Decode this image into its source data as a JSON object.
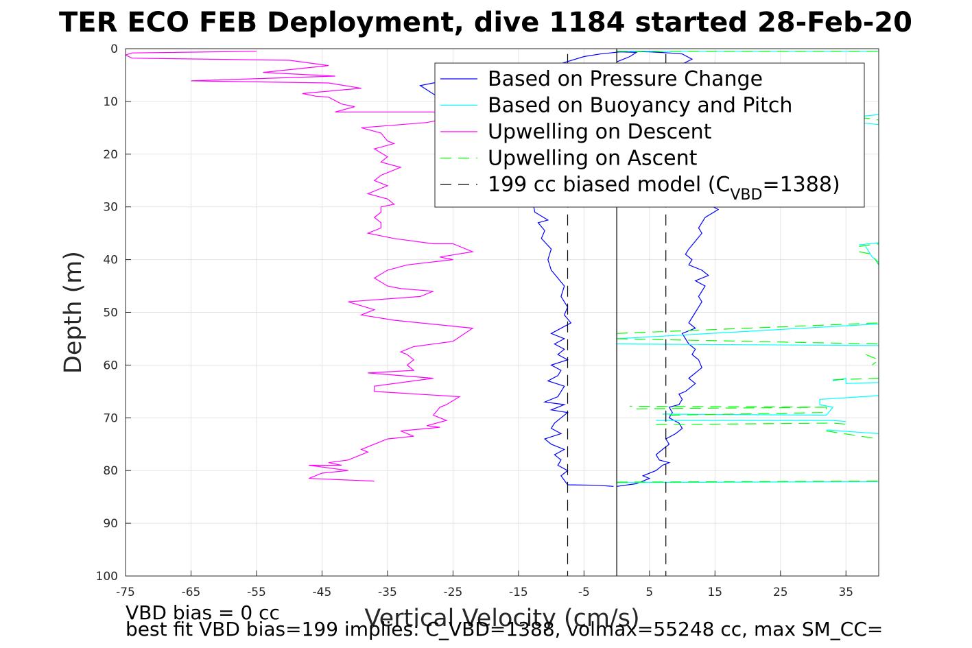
{
  "chart_data": {
    "type": "line",
    "title": "TER ECO FEB Deployment, dive 1184 started 28-Feb-20",
    "xlabel": "Vertical Velocity (cm/s)",
    "ylabel": "Depth (m)",
    "xlim": [
      -75,
      40
    ],
    "ylim": [
      0,
      100
    ],
    "y_reversed": true,
    "grid": true,
    "xticks": [
      -75,
      -65,
      -55,
      -45,
      -35,
      -25,
      -15,
      -5,
      5,
      15,
      25,
      35
    ],
    "yticks": [
      0,
      10,
      20,
      30,
      40,
      50,
      60,
      70,
      80,
      90,
      100
    ],
    "legend_position": "top-right",
    "legend": [
      {
        "label": "Based on Pressure Change",
        "color": "#0000ff",
        "style": "solid"
      },
      {
        "label": "Based on Buoyancy and Pitch",
        "color": "#00ffff",
        "style": "solid"
      },
      {
        "label": "Upwelling on Descent",
        "color": "#ff00ff",
        "style": "solid"
      },
      {
        "label": "Upwelling on Ascent",
        "color": "#00ff00",
        "style": "dashed"
      },
      {
        "label": "199 cc biased model (C",
        "sub": "VBD",
        "label_end": "=1388)",
        "color": "#000000",
        "style": "dashed"
      }
    ],
    "series": [
      {
        "name": "Based on Pressure Change",
        "color": "#0000ff",
        "style": "solid",
        "points": [
          [
            -0.5,
            83
          ],
          [
            -3,
            82.8
          ],
          [
            -7.5,
            82.7
          ],
          [
            -8.5,
            81
          ],
          [
            -7.5,
            80
          ],
          [
            -9,
            79
          ],
          [
            -8.5,
            78
          ],
          [
            -9.5,
            77
          ],
          [
            -8,
            76
          ],
          [
            -10,
            75
          ],
          [
            -11,
            74
          ],
          [
            -8.5,
            73
          ],
          [
            -10,
            72
          ],
          [
            -9.5,
            71
          ],
          [
            -8.5,
            70
          ],
          [
            -7.5,
            69
          ],
          [
            -10,
            68.5
          ],
          [
            -8,
            67.5
          ],
          [
            -11,
            67
          ],
          [
            -9,
            66
          ],
          [
            -8,
            64
          ],
          [
            -10.5,
            63
          ],
          [
            -9,
            62
          ],
          [
            -8.5,
            61
          ],
          [
            -10,
            60
          ],
          [
            -7.5,
            59
          ],
          [
            -9,
            58
          ],
          [
            -8,
            57
          ],
          [
            -9.5,
            56
          ],
          [
            -8,
            55
          ],
          [
            -10,
            54
          ],
          [
            -7,
            52
          ],
          [
            -8,
            50.5
          ],
          [
            -7.5,
            49
          ],
          [
            -8.5,
            47
          ],
          [
            -8,
            45
          ],
          [
            -9,
            43.5
          ],
          [
            -10,
            42
          ],
          [
            -10.5,
            40
          ],
          [
            -10,
            38
          ],
          [
            -11.5,
            36
          ],
          [
            -11,
            34.5
          ],
          [
            -12,
            33
          ],
          [
            -10.5,
            32.5
          ],
          [
            -12.5,
            31
          ],
          [
            -13,
            28
          ],
          [
            -11.5,
            25
          ],
          [
            -14,
            22
          ],
          [
            -15,
            18
          ],
          [
            -18,
            15
          ],
          [
            -25,
            11
          ],
          [
            -30,
            7
          ],
          [
            -28,
            6.5
          ],
          [
            -24,
            6
          ],
          [
            -18,
            5.5
          ],
          [
            -14,
            4
          ],
          [
            -9,
            3
          ],
          [
            -5,
            1.5
          ],
          [
            -2.5,
            1
          ],
          [
            -1,
            0.8
          ],
          [
            0.5,
            0.6
          ],
          [
            3,
            0.7
          ],
          [
            2,
            1.5
          ],
          [
            1,
            2
          ],
          [
            0,
            2.5
          ]
        ]
      },
      {
        "name": "Based on Pressure Change (ascent)",
        "color": "#0000ff",
        "style": "solid",
        "points": [
          [
            0,
            83
          ],
          [
            3,
            82.5
          ],
          [
            5,
            81.5
          ],
          [
            4,
            81
          ],
          [
            6,
            80
          ],
          [
            7,
            79
          ],
          [
            8,
            78.5
          ],
          [
            6.5,
            78
          ],
          [
            6,
            77
          ],
          [
            7,
            76
          ],
          [
            8,
            75
          ],
          [
            7.5,
            74
          ],
          [
            9,
            73
          ],
          [
            10,
            72
          ],
          [
            9.5,
            71
          ],
          [
            8,
            70
          ],
          [
            8.5,
            69
          ],
          [
            8,
            68
          ],
          [
            9.5,
            67.5
          ],
          [
            10,
            66.5
          ],
          [
            9.5,
            65.5
          ],
          [
            10.5,
            65
          ],
          [
            12,
            63.5
          ],
          [
            11,
            62.5
          ],
          [
            12,
            61.5
          ],
          [
            13,
            60.5
          ],
          [
            12.5,
            59
          ],
          [
            11.5,
            58
          ],
          [
            12,
            57
          ],
          [
            11,
            56
          ],
          [
            10.5,
            55
          ],
          [
            10,
            54
          ],
          [
            12,
            53
          ],
          [
            11,
            52
          ],
          [
            12,
            50
          ],
          [
            13,
            48
          ],
          [
            12.5,
            47
          ],
          [
            13.5,
            45
          ],
          [
            12,
            44
          ],
          [
            14,
            43
          ],
          [
            13,
            42
          ],
          [
            11,
            41
          ],
          [
            11.5,
            40
          ],
          [
            10.5,
            39
          ],
          [
            11,
            38
          ],
          [
            12,
            36.5
          ],
          [
            13,
            35
          ],
          [
            12.5,
            34
          ],
          [
            13.5,
            32
          ],
          [
            15.5,
            30.5
          ],
          [
            14,
            29.5
          ],
          [
            13,
            28
          ],
          [
            12,
            25
          ],
          [
            10,
            22
          ],
          [
            11,
            18
          ],
          [
            9,
            16
          ],
          [
            8,
            14
          ],
          [
            9,
            12
          ],
          [
            10,
            8
          ],
          [
            10.5,
            5
          ],
          [
            9,
            3.5
          ],
          [
            11.5,
            2
          ],
          [
            10,
            1
          ],
          [
            8,
            0.8
          ],
          [
            5,
            0.6
          ],
          [
            2,
            0.5
          ]
        ]
      },
      {
        "name": "Based on Buoyancy and Pitch",
        "color": "#00ffff",
        "style": "solid",
        "points": [
          [
            0,
            82.3
          ],
          [
            40,
            82.1
          ],
          null,
          [
            6,
            70.5
          ],
          [
            33,
            70.5
          ],
          [
            35,
            70.7
          ],
          null,
          [
            7,
            69.3
          ],
          [
            32,
            69.5
          ],
          [
            33,
            68
          ],
          [
            31,
            67.5
          ],
          [
            31,
            66.5
          ],
          [
            40,
            65.8
          ],
          null,
          [
            32,
            72.3
          ],
          [
            40,
            73
          ],
          null,
          [
            0,
            56
          ],
          [
            40,
            56.3
          ],
          null,
          [
            0,
            55
          ],
          [
            40,
            52.2
          ],
          null,
          [
            33,
            63
          ],
          [
            35,
            62.5
          ],
          [
            35,
            63.5
          ],
          [
            40,
            63.3
          ],
          null,
          [
            38,
            37.5
          ],
          [
            39,
            39.5
          ],
          [
            40,
            40.5
          ],
          null,
          [
            37,
            37.2
          ],
          [
            40,
            36.8
          ],
          null,
          [
            0,
            0.5
          ],
          [
            40,
            0.5
          ],
          null,
          [
            36,
            13
          ],
          [
            40,
            12.5
          ],
          null,
          [
            37,
            14
          ],
          [
            40,
            14.4
          ]
        ]
      },
      {
        "name": "Upwelling on Descent",
        "color": "#ff00ff",
        "style": "solid",
        "points": [
          [
            -55,
            0.5
          ],
          [
            -74,
            0.8
          ],
          [
            -75,
            1.2
          ],
          [
            -74,
            1.8
          ],
          [
            -50,
            2.2
          ],
          [
            -44,
            3.2
          ],
          [
            -54,
            4.5
          ],
          [
            -43,
            5.2
          ],
          [
            -65,
            6.1
          ],
          [
            -44,
            6.5
          ],
          [
            -39,
            7.5
          ],
          [
            -48,
            8.5
          ],
          [
            -46,
            9
          ],
          [
            -44,
            9.2
          ],
          [
            -42,
            10.5
          ],
          [
            -40,
            11
          ],
          [
            -43,
            12
          ],
          [
            -25,
            12
          ],
          [
            -23,
            12.5
          ],
          [
            -29,
            14
          ],
          [
            -39,
            15
          ],
          [
            -36,
            16
          ],
          [
            -35,
            17.5
          ],
          [
            -34,
            18
          ],
          [
            -37,
            19
          ],
          [
            -35,
            20.5
          ],
          [
            -36,
            21.5
          ],
          [
            -33,
            22.5
          ],
          [
            -36,
            24
          ],
          [
            -37,
            25
          ],
          [
            -35,
            26
          ],
          [
            -38,
            27.5
          ],
          [
            -35,
            28.5
          ],
          [
            -34,
            29.5
          ],
          [
            -36,
            30
          ],
          [
            -36,
            31
          ],
          [
            -37,
            32
          ],
          [
            -36,
            33
          ],
          [
            -36,
            34
          ],
          [
            -38,
            35
          ],
          [
            -34,
            36
          ],
          [
            -28,
            37
          ],
          [
            -25,
            37
          ],
          [
            -22,
            38.5
          ],
          [
            -27,
            39.5
          ],
          [
            -25,
            40
          ],
          [
            -32,
            41
          ],
          [
            -35,
            42
          ],
          [
            -37,
            43.5
          ],
          [
            -35,
            45
          ],
          [
            -33,
            45.5
          ],
          [
            -28,
            46
          ],
          [
            -30,
            47
          ],
          [
            -41,
            48
          ],
          [
            -37,
            49.5
          ],
          [
            -39,
            50.5
          ],
          [
            -34,
            51.5
          ],
          [
            -22,
            53
          ],
          [
            -25,
            55.5
          ],
          [
            -31,
            56.5
          ],
          [
            -33,
            57.5
          ],
          [
            -32,
            58
          ],
          [
            -31,
            59
          ],
          [
            -32,
            60
          ],
          [
            -31,
            61
          ],
          [
            -38,
            61.5
          ],
          [
            -28,
            62.5
          ],
          [
            -37,
            64
          ],
          [
            -37,
            65
          ],
          [
            -24,
            66
          ],
          [
            -26,
            67.5
          ],
          [
            -27,
            68
          ],
          [
            -28,
            69.5
          ],
          [
            -26,
            70.5
          ],
          [
            -29,
            71.5
          ],
          [
            -27,
            71.8
          ],
          [
            -33,
            72.5
          ],
          [
            -31,
            73.5
          ],
          [
            -35,
            74
          ],
          [
            -39,
            76
          ],
          [
            -38,
            76.5
          ],
          [
            -39,
            77
          ],
          [
            -41,
            78
          ],
          [
            -44,
            78.5
          ],
          [
            -42,
            79
          ],
          [
            -47,
            79
          ],
          [
            -41,
            80
          ],
          [
            -45,
            80.5
          ],
          [
            -47,
            81.5
          ],
          [
            -37,
            82
          ]
        ]
      },
      {
        "name": "Upwelling on Ascent",
        "color": "#00ff00",
        "style": "dashed",
        "points": [
          [
            0,
            82.2
          ],
          [
            40,
            82
          ],
          null,
          [
            6,
            71.3
          ],
          [
            33,
            71
          ],
          [
            35,
            71.2
          ],
          null,
          [
            8,
            69.5
          ],
          [
            32,
            69
          ],
          [
            32,
            68
          ],
          [
            2,
            67.8
          ],
          null,
          [
            3,
            68.3
          ],
          [
            32,
            68
          ],
          null,
          [
            32,
            72.5
          ],
          [
            40,
            74
          ],
          null,
          [
            0,
            55
          ],
          [
            40,
            56
          ],
          null,
          [
            0,
            54
          ],
          [
            40,
            52
          ],
          null,
          [
            33,
            62.8
          ],
          [
            40,
            62.5
          ],
          null,
          [
            37,
            37.5
          ],
          [
            40,
            37
          ],
          null,
          [
            37,
            38.5
          ],
          [
            39,
            39
          ],
          [
            40,
            41
          ],
          null,
          [
            0,
            0.5
          ],
          [
            40,
            0.5
          ],
          null,
          [
            37,
            13
          ],
          [
            40,
            13.5
          ],
          [
            40,
            14.5
          ],
          null,
          [
            38,
            58
          ],
          [
            40,
            59
          ],
          [
            39,
            60
          ]
        ]
      },
      {
        "name": "199 cc biased model (C_VBD=1388)",
        "color": "#000000",
        "style": "dashed",
        "points": [
          [
            -7.5,
            1
          ],
          [
            -7.5,
            100
          ],
          null,
          [
            7.5,
            1
          ],
          [
            7.5,
            100
          ]
        ]
      },
      {
        "name": "zero-line",
        "color": "#000000",
        "style": "solid",
        "points": [
          [
            0,
            0
          ],
          [
            0,
            100
          ]
        ]
      }
    ]
  },
  "notes": {
    "line1": "VBD bias = 0 cc",
    "line2": "best fit VBD bias=199 implies: C_VBD=1388, volmax=55248 cc, max SM_CC="
  }
}
